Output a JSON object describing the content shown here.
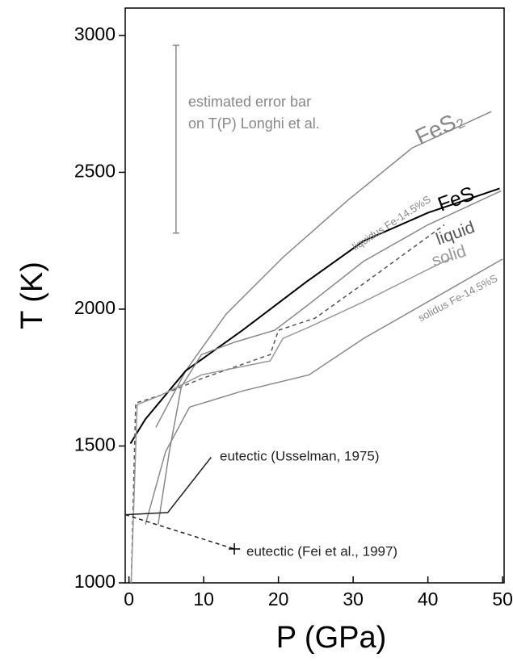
{
  "chart_data": {
    "type": "line",
    "xlabel": "P (GPa)",
    "ylabel": "T (K)",
    "xlim": [
      -0.5,
      50.2
    ],
    "ylim": [
      1000,
      3100
    ],
    "xticks": [
      0,
      10,
      20,
      30,
      40,
      50
    ],
    "yticks": [
      1000,
      1500,
      2000,
      2500,
      3000
    ],
    "series": [
      {
        "name": "FeS₂",
        "color": "#888888",
        "dashed": false,
        "x": [
          3.6,
          7.6,
          13,
          20.6,
          29.2,
          37.9,
          48.5
        ],
        "values": [
          1568,
          1775,
          1982,
          2189,
          2396,
          2589,
          2722
        ]
      },
      {
        "name": "FeS",
        "color": "#000000",
        "dashed": false,
        "x": [
          0.2,
          2.2,
          7.6,
          15.2,
          23.8,
          31.4,
          40,
          49.6
        ],
        "values": [
          1509,
          1598,
          1775,
          1923,
          2101,
          2249,
          2352,
          2441
        ]
      },
      {
        "name": "liquid",
        "color": "#555555",
        "dashed": true,
        "x": [
          0.3,
          0.9,
          4.3,
          9.7,
          18.9,
          20,
          24.9,
          32.5,
          42.2
        ],
        "values": [
          1000,
          1657,
          1686,
          1746,
          1834,
          1923,
          1967,
          2115,
          2308
        ]
      },
      {
        "name": "solid",
        "color": "#999999",
        "dashed": false,
        "x": [
          0.3,
          1.1,
          4.3,
          9.7,
          18.9,
          20.6,
          24.4,
          31.4,
          40,
          43.3
        ],
        "values": [
          1000,
          1651,
          1686,
          1760,
          1811,
          1893,
          1938,
          2027,
          2145,
          2189
        ]
      },
      {
        "name": "liquidus Fe-14.5%S",
        "color": "#888888",
        "dashed": false,
        "x": [
          3.9,
          5.4,
          7,
          9.7,
          14.1,
          19.5,
          23.8,
          31.4,
          40,
          49.8
        ],
        "values": [
          1213,
          1479,
          1716,
          1834,
          1879,
          1923,
          2012,
          2175,
          2308,
          2432
        ]
      },
      {
        "name": "solidus Fe-14.5%S",
        "color": "#888888",
        "dashed": false,
        "x": [
          2.2,
          4.9,
          8.1,
          15.2,
          24.1,
          31.4,
          40,
          50
        ],
        "values": [
          1213,
          1479,
          1642,
          1701,
          1760,
          1893,
          2027,
          2183
        ]
      },
      {
        "name": "eutectic (Usselman, 1975)",
        "color": "#222222",
        "dashed": false,
        "x": [
          -0.5,
          5.2,
          11
        ],
        "values": [
          1249,
          1257,
          1459
        ]
      },
      {
        "name": "eutectic (Fei et al., 1997)",
        "color": "#222222",
        "dashed": true,
        "x": [
          -0.5,
          14.1
        ],
        "values": [
          1249,
          1124
        ]
      }
    ],
    "error_bar": {
      "x": 6.3,
      "value": 2621,
      "error": 343,
      "color": "#888888",
      "label_lines": [
        "estimated error bar",
        "on T(P) Longhi et al."
      ]
    }
  }
}
